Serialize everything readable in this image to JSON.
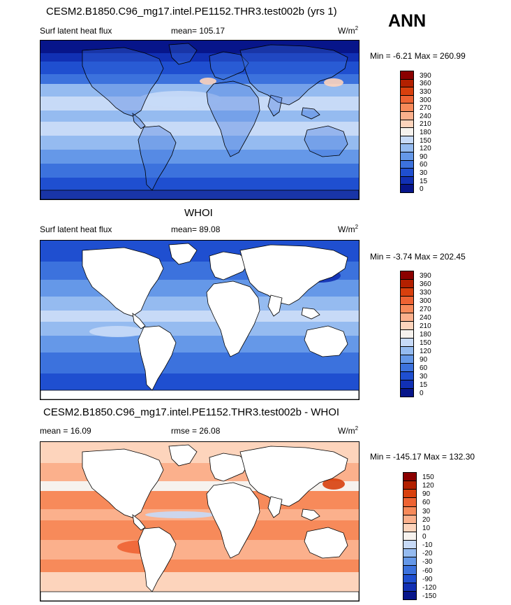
{
  "header": {
    "season": "ANN"
  },
  "panels": [
    {
      "title": "CESM2.B1850.C96_mg17.intel.PE1152.THR3.test002b (yrs 1)",
      "left": "Surf latent heat flux",
      "center": "mean= 105.17",
      "units_base": "W/m",
      "units_exp": "2",
      "minmax": "Min =  -6.21 Max = 260.99",
      "colorbar": [
        "390",
        "360",
        "330",
        "300",
        "270",
        "240",
        "210",
        "180",
        "150",
        "120",
        "90",
        "60",
        "30",
        "15",
        "0"
      ],
      "colors": [
        "#8b0000",
        "#b32000",
        "#d8400d",
        "#ee6333",
        "#f78a5a",
        "#fbb08c",
        "#fdd4bc",
        "#f6f2ee",
        "#c7daf7",
        "#95bbf0",
        "#6598e8",
        "#3c72dd",
        "#1f4fd0",
        "#1130b4",
        "#07158a"
      ],
      "fields": [
        "ocean-model"
      ]
    },
    {
      "title": "WHOI",
      "left": "Surf latent heat flux",
      "center": "mean=  89.08",
      "units_base": "W/m",
      "units_exp": "2",
      "minmax": "Min =  -3.74 Max = 202.45",
      "colorbar": [
        "390",
        "360",
        "330",
        "300",
        "270",
        "240",
        "210",
        "180",
        "150",
        "120",
        "90",
        "60",
        "30",
        "15",
        "0"
      ],
      "colors": [
        "#8b0000",
        "#b32000",
        "#d8400d",
        "#ee6333",
        "#f78a5a",
        "#fbb08c",
        "#fdd4bc",
        "#f6f2ee",
        "#c7daf7",
        "#95bbf0",
        "#6598e8",
        "#3c72dd",
        "#1f4fd0",
        "#1130b4",
        "#07158a"
      ],
      "fields": [
        "ocean-obs"
      ]
    },
    {
      "title": "CESM2.B1850.C96_mg17.intel.PE1152.THR3.test002b - WHOI",
      "left": "mean =  16.09",
      "center": "rmse =  26.08",
      "units_base": "W/m",
      "units_exp": "2",
      "minmax": "Min = -145.17 Max = 132.30",
      "colorbar": [
        "150",
        "120",
        "90",
        "60",
        "30",
        "20",
        "10",
        "0",
        "-10",
        "-20",
        "-30",
        "-60",
        "-90",
        "-120",
        "-150"
      ],
      "colors": [
        "#8b0000",
        "#b32000",
        "#d8400d",
        "#ee6333",
        "#f78a5a",
        "#fbb08c",
        "#fdd4bc",
        "#f6f2ee",
        "#c7daf7",
        "#95bbf0",
        "#6598e8",
        "#3c72dd",
        "#1f4fd0",
        "#1130b4",
        "#07158a"
      ],
      "fields": [
        "ocean-diff"
      ]
    }
  ],
  "chart_data": [
    {
      "type": "heatmap",
      "title": "CESM2.B1850.C96_mg17.intel.PE1152.THR3.test002b (yrs 1)",
      "variable": "Surf latent heat flux",
      "units": "W/m2",
      "mean": 105.17,
      "min": -6.21,
      "max": 260.99,
      "colorbar_levels": [
        0,
        15,
        30,
        60,
        90,
        120,
        150,
        180,
        210,
        240,
        270,
        300,
        330,
        360,
        390
      ]
    },
    {
      "type": "heatmap",
      "title": "WHOI",
      "variable": "Surf latent heat flux",
      "units": "W/m2",
      "mean": 89.08,
      "min": -3.74,
      "max": 202.45,
      "colorbar_levels": [
        0,
        15,
        30,
        60,
        90,
        120,
        150,
        180,
        210,
        240,
        270,
        300,
        330,
        360,
        390
      ]
    },
    {
      "type": "heatmap",
      "title": "CESM2.B1850.C96_mg17.intel.PE1152.THR3.test002b - WHOI",
      "units": "W/m2",
      "mean": 16.09,
      "rmse": 26.08,
      "min": -145.17,
      "max": 132.3,
      "colorbar_levels": [
        -150,
        -120,
        -90,
        -60,
        -30,
        -20,
        -10,
        0,
        10,
        20,
        30,
        60,
        90,
        120,
        150
      ]
    }
  ]
}
